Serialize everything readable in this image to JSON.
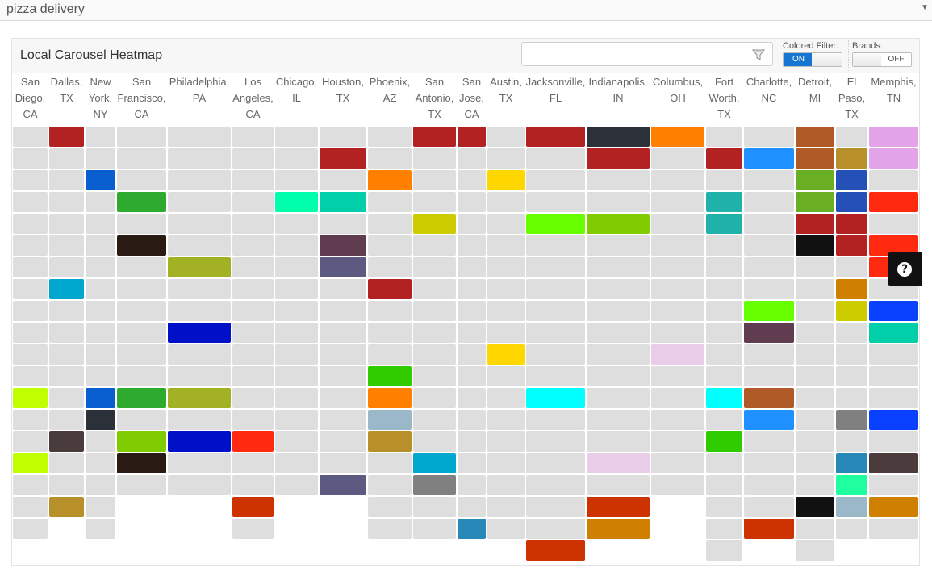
{
  "topbar": {
    "title": "pizza delivery",
    "caret": "▼"
  },
  "panel": {
    "title": "Local Carousel Heatmap",
    "search": {
      "placeholder": "",
      "icon": "filter-funnel-icon"
    },
    "colored_filter": {
      "label": "Colored Filter:",
      "state": "ON"
    },
    "brands": {
      "label": "Brands:",
      "state": "OFF"
    }
  },
  "help": {
    "label": "?",
    "icon": "help-icon"
  },
  "columns": [
    [
      "San",
      "Diego,",
      "CA"
    ],
    [
      "Dallas,",
      "TX"
    ],
    [
      "New",
      "York,",
      "NY"
    ],
    [
      "San",
      "Francisco,",
      "CA"
    ],
    [
      "Philadelphia,",
      "PA"
    ],
    [
      "Los",
      "Angeles,",
      "CA"
    ],
    [
      "Chicago,",
      "IL"
    ],
    [
      "Houston,",
      "TX"
    ],
    [
      "Phoenix,",
      "AZ"
    ],
    [
      "San",
      "Antonio,",
      "TX"
    ],
    [
      "San",
      "Jose,",
      "CA"
    ],
    [
      "Austin,",
      "TX"
    ],
    [
      "Jacksonville,",
      "FL"
    ],
    [
      "Indianapolis,",
      "IN"
    ],
    [
      "Columbus,",
      "OH"
    ],
    [
      "Fort",
      "Worth,",
      "TX"
    ],
    [
      "Charlotte,",
      "NC"
    ],
    [
      "Detroit,",
      "MI"
    ],
    [
      "El",
      "Paso,",
      "TX"
    ],
    [
      "Memphis,",
      "TN"
    ]
  ],
  "row_counts": [
    19,
    18,
    19,
    17,
    17,
    19,
    17,
    17,
    19,
    19,
    19,
    19,
    20,
    19,
    17,
    20,
    19,
    20,
    19,
    19
  ],
  "colored_cells": [
    {
      "c": 1,
      "r": 0,
      "color": "#b22222"
    },
    {
      "c": 9,
      "r": 0,
      "color": "#b22222"
    },
    {
      "c": 10,
      "r": 0,
      "color": "#b22222"
    },
    {
      "c": 12,
      "r": 0,
      "color": "#b22222"
    },
    {
      "c": 13,
      "r": 0,
      "color": "#2c3038"
    },
    {
      "c": 14,
      "r": 0,
      "color": "#ff7f00"
    },
    {
      "c": 17,
      "r": 0,
      "color": "#b05a28"
    },
    {
      "c": 19,
      "r": 0,
      "color": "#e3a3e8"
    },
    {
      "c": 7,
      "r": 1,
      "color": "#b22222"
    },
    {
      "c": 13,
      "r": 1,
      "color": "#b22222"
    },
    {
      "c": 15,
      "r": 1,
      "color": "#b22222"
    },
    {
      "c": 16,
      "r": 1,
      "color": "#1e90ff"
    },
    {
      "c": 17,
      "r": 1,
      "color": "#b05a28"
    },
    {
      "c": 18,
      "r": 1,
      "color": "#b8902a"
    },
    {
      "c": 19,
      "r": 1,
      "color": "#e3a3e8"
    },
    {
      "c": 2,
      "r": 2,
      "color": "#0a5fd0"
    },
    {
      "c": 8,
      "r": 2,
      "color": "#ff7f00"
    },
    {
      "c": 11,
      "r": 2,
      "color": "#ffd700"
    },
    {
      "c": 17,
      "r": 2,
      "color": "#6aaf23"
    },
    {
      "c": 18,
      "r": 2,
      "color": "#2450b8"
    },
    {
      "c": 3,
      "r": 3,
      "color": "#2eaa2e"
    },
    {
      "c": 6,
      "r": 3,
      "color": "#00ffaa"
    },
    {
      "c": 7,
      "r": 3,
      "color": "#00cfaa"
    },
    {
      "c": 15,
      "r": 3,
      "color": "#20b2aa"
    },
    {
      "c": 17,
      "r": 3,
      "color": "#6aaf23"
    },
    {
      "c": 18,
      "r": 3,
      "color": "#2450b8"
    },
    {
      "c": 19,
      "r": 3,
      "color": "#ff2a10"
    },
    {
      "c": 9,
      "r": 4,
      "color": "#cccc00"
    },
    {
      "c": 12,
      "r": 4,
      "color": "#66ff00"
    },
    {
      "c": 13,
      "r": 4,
      "color": "#80cc00"
    },
    {
      "c": 15,
      "r": 4,
      "color": "#20b2aa"
    },
    {
      "c": 17,
      "r": 4,
      "color": "#b22222"
    },
    {
      "c": 18,
      "r": 4,
      "color": "#b22222"
    },
    {
      "c": 3,
      "r": 5,
      "color": "#2a1a14"
    },
    {
      "c": 7,
      "r": 5,
      "color": "#603c50"
    },
    {
      "c": 17,
      "r": 5,
      "color": "#111111"
    },
    {
      "c": 18,
      "r": 5,
      "color": "#b22222"
    },
    {
      "c": 19,
      "r": 5,
      "color": "#ff2a10"
    },
    {
      "c": 4,
      "r": 6,
      "color": "#a2b224"
    },
    {
      "c": 7,
      "r": 6,
      "color": "#5c5a80"
    },
    {
      "c": 19,
      "r": 6,
      "color": "#ff2a10"
    },
    {
      "c": 1,
      "r": 7,
      "color": "#00a8d0"
    },
    {
      "c": 8,
      "r": 7,
      "color": "#b22222"
    },
    {
      "c": 18,
      "r": 7,
      "color": "#d08000"
    },
    {
      "c": 16,
      "r": 8,
      "color": "#66ff00"
    },
    {
      "c": 18,
      "r": 8,
      "color": "#cccc00"
    },
    {
      "c": 19,
      "r": 8,
      "color": "#0a40ff"
    },
    {
      "c": 4,
      "r": 9,
      "color": "#0010c8"
    },
    {
      "c": 16,
      "r": 9,
      "color": "#603c50"
    },
    {
      "c": 19,
      "r": 9,
      "color": "#00cfaa"
    },
    {
      "c": 11,
      "r": 10,
      "color": "#ffd700"
    },
    {
      "c": 14,
      "r": 10,
      "color": "#e8cce8"
    },
    {
      "c": 8,
      "r": 11,
      "color": "#30cc00"
    },
    {
      "c": 0,
      "r": 12,
      "color": "#bfff00"
    },
    {
      "c": 2,
      "r": 12,
      "color": "#0a5fd0"
    },
    {
      "c": 3,
      "r": 12,
      "color": "#2eaa2e"
    },
    {
      "c": 4,
      "r": 12,
      "color": "#a2b224"
    },
    {
      "c": 8,
      "r": 12,
      "color": "#ff7f00"
    },
    {
      "c": 12,
      "r": 12,
      "color": "#00ffff"
    },
    {
      "c": 15,
      "r": 12,
      "color": "#00ffff"
    },
    {
      "c": 16,
      "r": 12,
      "color": "#b05a28"
    },
    {
      "c": 2,
      "r": 13,
      "color": "#2c3038"
    },
    {
      "c": 8,
      "r": 13,
      "color": "#9ab8c8"
    },
    {
      "c": 16,
      "r": 13,
      "color": "#1e90ff"
    },
    {
      "c": 18,
      "r": 13,
      "color": "#808080"
    },
    {
      "c": 19,
      "r": 13,
      "color": "#0a40ff"
    },
    {
      "c": 1,
      "r": 14,
      "color": "#4a3c3c"
    },
    {
      "c": 3,
      "r": 14,
      "color": "#80cc00"
    },
    {
      "c": 4,
      "r": 14,
      "color": "#0010c8"
    },
    {
      "c": 5,
      "r": 14,
      "color": "#ff2a10"
    },
    {
      "c": 8,
      "r": 14,
      "color": "#b8902a"
    },
    {
      "c": 15,
      "r": 14,
      "color": "#30cc00"
    },
    {
      "c": 0,
      "r": 15,
      "color": "#bfff00"
    },
    {
      "c": 3,
      "r": 15,
      "color": "#2a1a14"
    },
    {
      "c": 9,
      "r": 15,
      "color": "#00a8d0"
    },
    {
      "c": 13,
      "r": 15,
      "color": "#e8cce8"
    },
    {
      "c": 18,
      "r": 15,
      "color": "#2888b8"
    },
    {
      "c": 19,
      "r": 15,
      "color": "#4a3c3c"
    },
    {
      "c": 7,
      "r": 16,
      "color": "#5c5a80"
    },
    {
      "c": 9,
      "r": 16,
      "color": "#808080"
    },
    {
      "c": 18,
      "r": 16,
      "color": "#20ffa0"
    },
    {
      "c": 1,
      "r": 17,
      "color": "#b8902a"
    },
    {
      "c": 5,
      "r": 17,
      "color": "#cc3300"
    },
    {
      "c": 13,
      "r": 17,
      "color": "#cc3300"
    },
    {
      "c": 17,
      "r": 17,
      "color": "#111111"
    },
    {
      "c": 18,
      "r": 17,
      "color": "#9ab8c8"
    },
    {
      "c": 19,
      "r": 17,
      "color": "#d08000"
    },
    {
      "c": 10,
      "r": 18,
      "color": "#2888b8"
    },
    {
      "c": 13,
      "r": 18,
      "color": "#d08000"
    },
    {
      "c": 16,
      "r": 18,
      "color": "#cc3300"
    },
    {
      "c": 12,
      "r": 19,
      "color": "#cc3300"
    }
  ],
  "colors": {
    "empty_cell": "#dedede",
    "toggle_on": "#1676d2"
  }
}
